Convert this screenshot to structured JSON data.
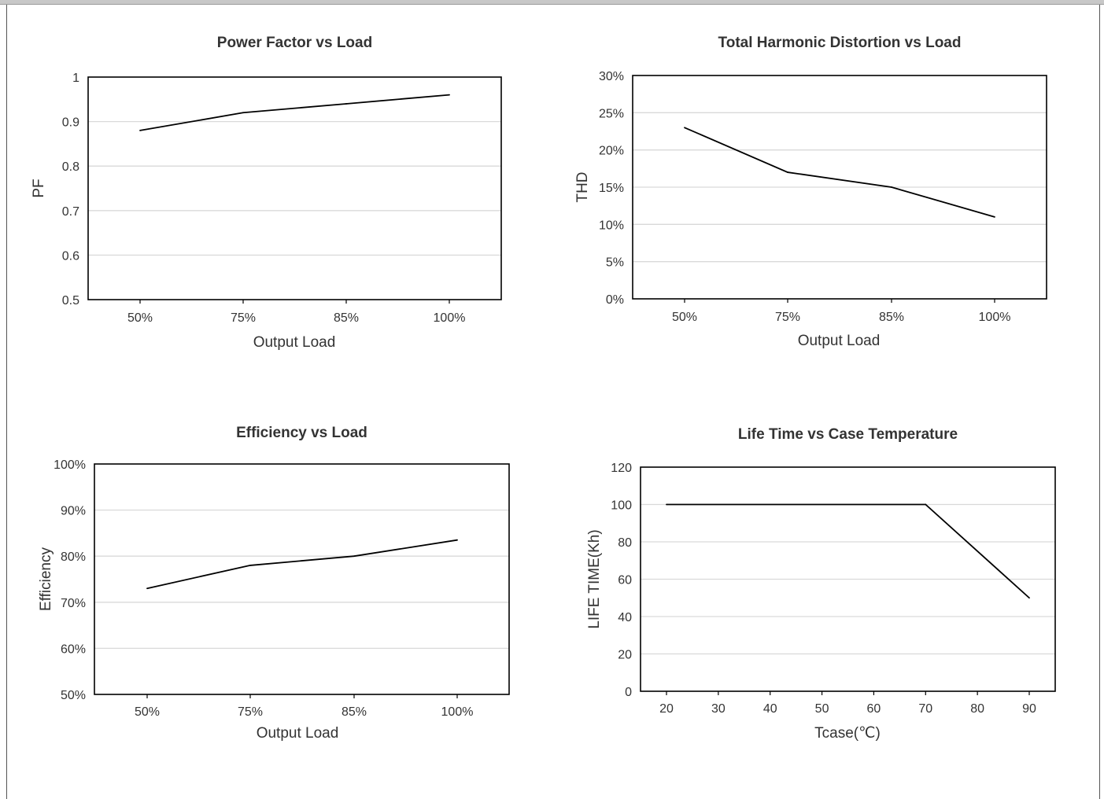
{
  "chart_data": [
    {
      "id": "pf",
      "type": "line",
      "title": "Power Factor vs Load",
      "xlabel": "Output Load",
      "ylabel": "PF",
      "categories": [
        "50%",
        "75%",
        "85%",
        "100%"
      ],
      "values": [
        0.88,
        0.92,
        0.94,
        0.96
      ],
      "ylim": [
        0.5,
        1
      ],
      "yticks": [
        0.5,
        0.6,
        0.7,
        0.8,
        0.9,
        1
      ],
      "ytick_labels": [
        "0.5",
        "0.6",
        "0.7",
        "0.8",
        "0.9",
        "1"
      ],
      "grid": true,
      "legend": "none"
    },
    {
      "id": "thd",
      "type": "line",
      "title": "Total Harmonic Distortion vs Load",
      "xlabel": "Output Load",
      "ylabel": "THD",
      "categories": [
        "50%",
        "75%",
        "85%",
        "100%"
      ],
      "values": [
        23,
        17,
        15,
        11
      ],
      "ylim": [
        0,
        30
      ],
      "yticks": [
        0,
        5,
        10,
        15,
        20,
        25,
        30
      ],
      "ytick_labels": [
        "0%",
        "5%",
        "10%",
        "15%",
        "20%",
        "25%",
        "30%"
      ],
      "grid": true,
      "legend": "none"
    },
    {
      "id": "eff",
      "type": "line",
      "title": "Efficiency vs Load",
      "xlabel": "Output Load",
      "ylabel": "Efficiency",
      "categories": [
        "50%",
        "75%",
        "85%",
        "100%"
      ],
      "values": [
        73,
        78,
        80,
        83.5
      ],
      "ylim": [
        50,
        100
      ],
      "yticks": [
        50,
        60,
        70,
        80,
        90,
        100
      ],
      "ytick_labels": [
        "50%",
        "60%",
        "70%",
        "80%",
        "90%",
        "100%"
      ],
      "grid": true,
      "legend": "none"
    },
    {
      "id": "life",
      "type": "line",
      "title": "Life Time vs Case Temperature",
      "xlabel": "Tcase(℃)",
      "ylabel": "LIFE TIME(Kh)",
      "categories": [
        "20",
        "30",
        "40",
        "50",
        "60",
        "70",
        "80",
        "90"
      ],
      "x": [
        20,
        70,
        90
      ],
      "values": [
        100,
        100,
        50
      ],
      "xlim": [
        20,
        90
      ],
      "ylim": [
        0,
        120
      ],
      "yticks": [
        0,
        20,
        40,
        60,
        80,
        100,
        120
      ],
      "ytick_labels": [
        "0",
        "20",
        "40",
        "60",
        "80",
        "100",
        "120"
      ],
      "grid": true,
      "legend": "none"
    }
  ]
}
